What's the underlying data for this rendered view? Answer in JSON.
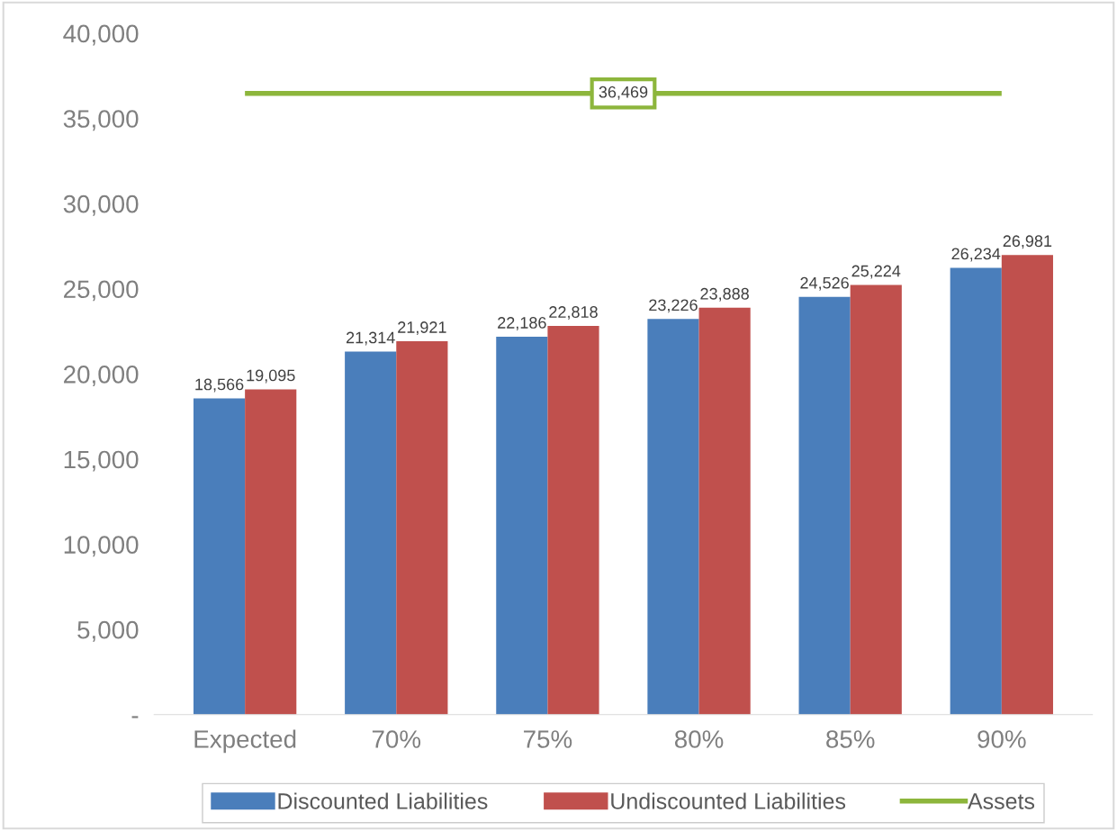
{
  "chart_data": {
    "type": "bar",
    "categories": [
      "Expected",
      "70%",
      "75%",
      "80%",
      "85%",
      "90%"
    ],
    "series": [
      {
        "name": "Discounted Liabilities",
        "color": "#4a7ebb",
        "values": [
          18566,
          21314,
          22186,
          23226,
          24526,
          26234
        ],
        "value_labels": [
          "18,566",
          "21,314",
          "22,186",
          "23,226",
          "24,526",
          "26,234"
        ]
      },
      {
        "name": "Undiscounted Liabilities",
        "color": "#c0504d",
        "values": [
          19095,
          21921,
          22818,
          23888,
          25224,
          26981
        ],
        "value_labels": [
          "19,095",
          "21,921",
          "22,818",
          "23,888",
          "25,224",
          "26,981"
        ]
      },
      {
        "name": "Assets",
        "type": "line",
        "color": "#8db63c",
        "values": [
          36469,
          36469,
          36469,
          36469,
          36469,
          36469
        ]
      }
    ],
    "annotations": [
      {
        "text": "36,469",
        "y": 36469
      }
    ],
    "ylim": [
      0,
      40000
    ],
    "yticks": [
      {
        "value": 0,
        "label": "-"
      },
      {
        "value": 5000,
        "label": "5,000"
      },
      {
        "value": 10000,
        "label": "10,000"
      },
      {
        "value": 15000,
        "label": "15,000"
      },
      {
        "value": 20000,
        "label": "20,000"
      },
      {
        "value": 25000,
        "label": "25,000"
      },
      {
        "value": 30000,
        "label": "30,000"
      },
      {
        "value": 35000,
        "label": "35,000"
      },
      {
        "value": 40000,
        "label": "40,000"
      }
    ],
    "grid": false,
    "legend": "bottom",
    "marker": "none"
  }
}
